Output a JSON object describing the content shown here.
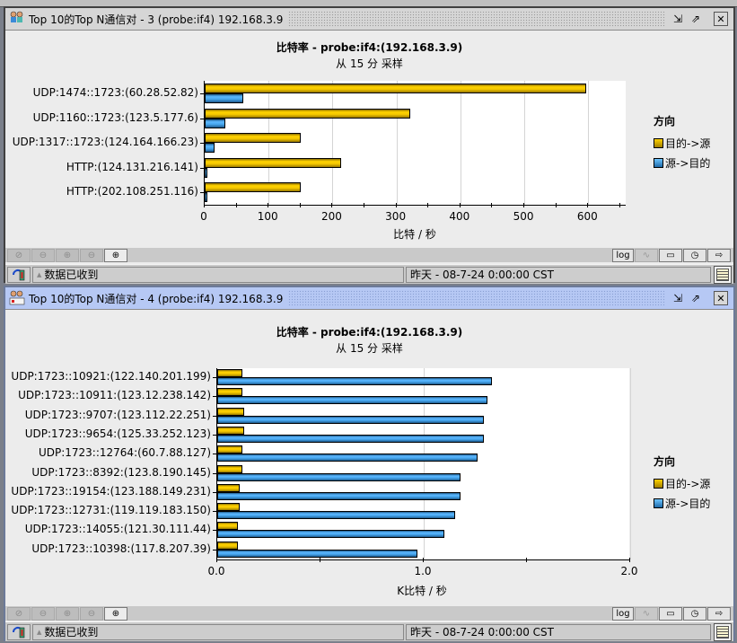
{
  "windows": [
    {
      "title": "Top 10的Top N通信对 - 3 (probe:if4) 192.168.3.9",
      "chart_title": "比特率 - probe:if4:(192.168.3.9)",
      "chart_subtitle": "从 15 分 采样",
      "x_axis_title": "比特 / 秒",
      "x_ticks": [
        "0",
        "100",
        "200",
        "300",
        "400",
        "500",
        "600"
      ],
      "legend_title": "方向",
      "legend": [
        "目的->源",
        "源->目的"
      ],
      "status_message": "数据已收到",
      "status_time": "昨天 - 08-7-24 0:00:00 CST",
      "toolbar_log": "log"
    },
    {
      "title": "Top 10的Top N通信对 - 4 (probe:if4) 192.168.3.9",
      "chart_title": "比特率 - probe:if4:(192.168.3.9)",
      "chart_subtitle": "从 15 分 采样",
      "x_axis_title": "K比特 / 秒",
      "x_ticks": [
        "0.0",
        "1.0",
        "2.0"
      ],
      "legend_title": "方向",
      "legend": [
        "目的->源",
        "源->目的"
      ],
      "status_message": "数据已收到",
      "status_time": "昨天 - 08-7-24 0:00:00 CST",
      "toolbar_log": "log"
    }
  ],
  "colors": {
    "dst_to_src": "#f5c800",
    "src_to_dst": "#46a6ee"
  },
  "chart_data": [
    {
      "type": "bar",
      "orientation": "horizontal",
      "title": "比特率 - probe:if4:(192.168.3.9)",
      "subtitle": "从 15 分 采样",
      "xlabel": "比特 / 秒",
      "ylabel": "",
      "xlim": [
        0,
        660
      ],
      "grid": true,
      "legend_position": "right",
      "legend_title": "方向",
      "categories": [
        "UDP:1474::1723:(60.28.52.82)",
        "UDP:1160::1723:(123.5.177.6)",
        "UDP:1317::1723:(124.164.166.23)",
        "HTTP:(124.131.216.141)",
        "HTTP:(202.108.251.116)"
      ],
      "series": [
        {
          "name": "目的->源",
          "values": [
            597,
            322,
            150,
            213,
            150
          ]
        },
        {
          "name": "源->目的",
          "values": [
            61,
            32,
            15,
            4,
            4
          ]
        }
      ]
    },
    {
      "type": "bar",
      "orientation": "horizontal",
      "title": "比特率 - probe:if4:(192.168.3.9)",
      "subtitle": "从 15 分 采样",
      "xlabel": "K比特 / 秒",
      "ylabel": "",
      "xlim": [
        0,
        2.0
      ],
      "grid": true,
      "legend_position": "right",
      "legend_title": "方向",
      "categories": [
        "UDP:1723::10921:(122.140.201.199)",
        "UDP:1723::10911:(123.12.238.142)",
        "UDP:1723::9707:(123.112.22.251)",
        "UDP:1723::9654:(125.33.252.123)",
        "UDP:1723::12764:(60.7.88.127)",
        "UDP:1723::8392:(123.8.190.145)",
        "UDP:1723::19154:(123.188.149.231)",
        "UDP:1723::12731:(119.119.183.150)",
        "UDP:1723::14055:(121.30.111.44)",
        "UDP:1723::10398:(117.8.207.39)"
      ],
      "series": [
        {
          "name": "目的->源",
          "values": [
            0.12,
            0.12,
            0.13,
            0.13,
            0.12,
            0.12,
            0.11,
            0.11,
            0.1,
            0.1
          ]
        },
        {
          "name": "源->目的",
          "values": [
            1.33,
            1.31,
            1.29,
            1.29,
            1.26,
            1.18,
            1.18,
            1.15,
            1.1,
            0.97
          ]
        }
      ]
    }
  ]
}
